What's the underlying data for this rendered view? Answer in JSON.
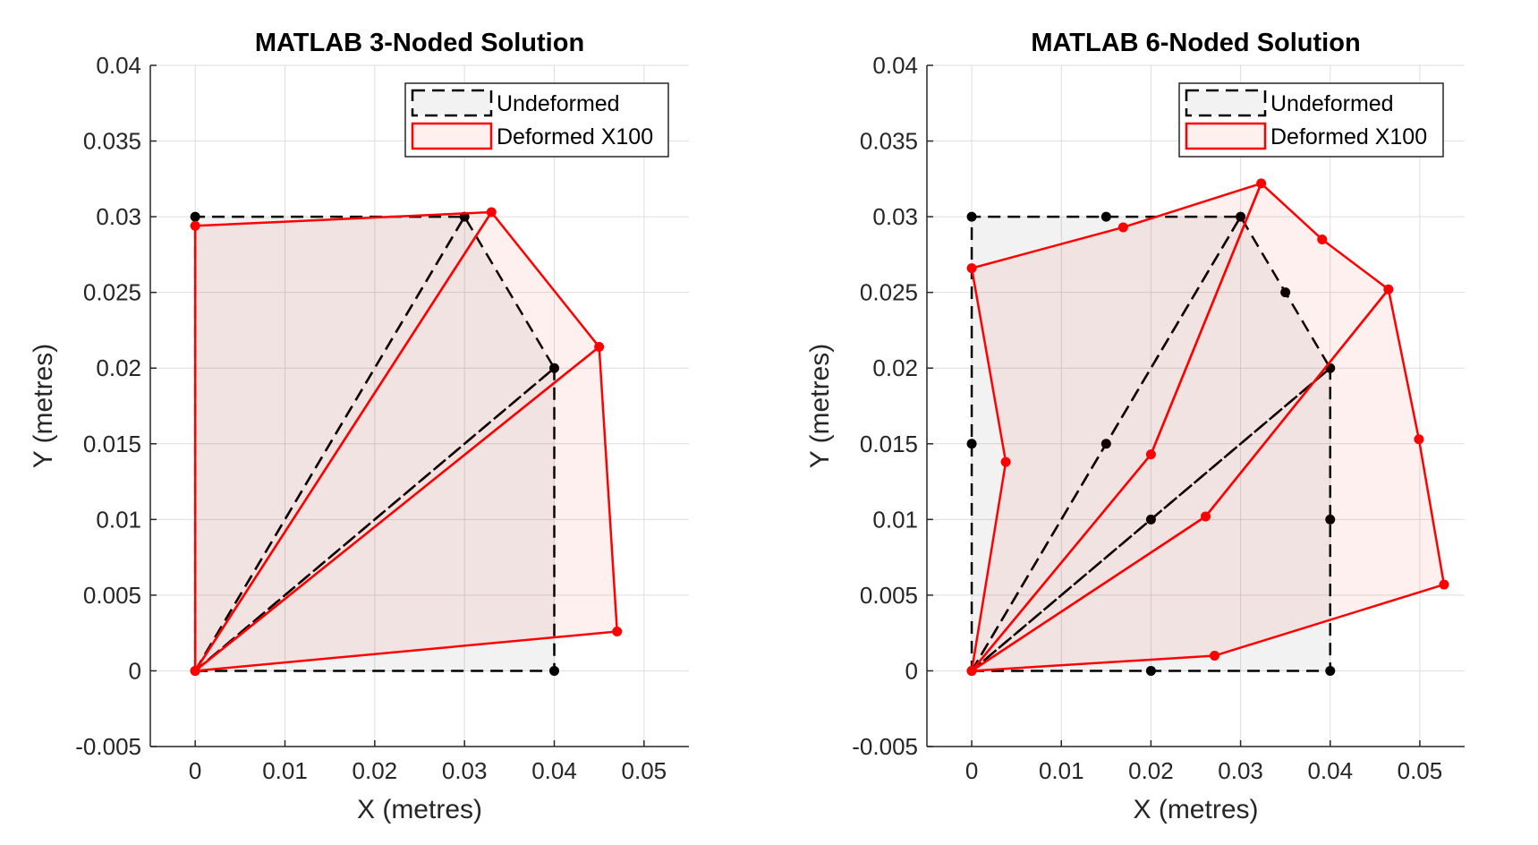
{
  "chart_data": [
    {
      "type": "mesh-plot",
      "title": "MATLAB 3-Noded Solution",
      "xlabel": "X (metres)",
      "ylabel": "Y (metres)",
      "xlim": [
        -0.005,
        0.055
      ],
      "ylim": [
        -0.005,
        0.04
      ],
      "xticks": [
        0,
        0.01,
        0.02,
        0.03,
        0.04,
        0.05
      ],
      "xtick_labels": [
        "0",
        "0.01",
        "0.02",
        "0.03",
        "0.04",
        "0.05"
      ],
      "yticks": [
        -0.005,
        0,
        0.005,
        0.01,
        0.015,
        0.02,
        0.025,
        0.03,
        0.035,
        0.04
      ],
      "ytick_labels": [
        "-0.005",
        "0",
        "0.005",
        "0.01",
        "0.015",
        "0.02",
        "0.025",
        "0.03",
        "0.035",
        "0.04"
      ],
      "grid": true,
      "legend_position": "top-right",
      "legend": [
        {
          "label": "Undeformed",
          "style": "dashed",
          "color": "#000000"
        },
        {
          "label": "Deformed X100",
          "style": "solid",
          "color": "#ff0000"
        }
      ],
      "undeformed": {
        "nodes": [
          [
            0,
            0
          ],
          [
            0.04,
            0
          ],
          [
            0.04,
            0.02
          ],
          [
            0.03,
            0.03
          ],
          [
            0,
            0.03
          ]
        ],
        "elements": [
          [
            0,
            1,
            2
          ],
          [
            0,
            2,
            3
          ],
          [
            0,
            3,
            4
          ]
        ]
      },
      "deformed": {
        "nodes": [
          [
            0,
            0
          ],
          [
            0.047,
            0.0026
          ],
          [
            0.045,
            0.0214
          ],
          [
            0.033,
            0.0303
          ],
          [
            0,
            0.0294
          ]
        ],
        "elements": [
          [
            0,
            1,
            2
          ],
          [
            0,
            2,
            3
          ],
          [
            0,
            3,
            4
          ]
        ]
      }
    },
    {
      "type": "mesh-plot",
      "title": "MATLAB 6-Noded Solution",
      "xlabel": "X (metres)",
      "ylabel": "Y (metres)",
      "xlim": [
        -0.005,
        0.055
      ],
      "ylim": [
        -0.005,
        0.04
      ],
      "xticks": [
        0,
        0.01,
        0.02,
        0.03,
        0.04,
        0.05
      ],
      "xtick_labels": [
        "0",
        "0.01",
        "0.02",
        "0.03",
        "0.04",
        "0.05"
      ],
      "yticks": [
        -0.005,
        0,
        0.005,
        0.01,
        0.015,
        0.02,
        0.025,
        0.03,
        0.035,
        0.04
      ],
      "ytick_labels": [
        "-0.005",
        "0",
        "0.005",
        "0.01",
        "0.015",
        "0.02",
        "0.025",
        "0.03",
        "0.035",
        "0.04"
      ],
      "grid": true,
      "legend_position": "top-right",
      "legend": [
        {
          "label": "Undeformed",
          "style": "dashed",
          "color": "#000000"
        },
        {
          "label": "Deformed X100",
          "style": "solid",
          "color": "#ff0000"
        }
      ],
      "undeformed": {
        "nodes": [
          [
            0,
            0
          ],
          [
            0.04,
            0
          ],
          [
            0.04,
            0.02
          ],
          [
            0.03,
            0.03
          ],
          [
            0,
            0.03
          ],
          [
            0.02,
            0
          ],
          [
            0.04,
            0.01
          ],
          [
            0.02,
            0.01
          ],
          [
            0.035,
            0.025
          ],
          [
            0.015,
            0.015
          ],
          [
            0.015,
            0.03
          ],
          [
            0,
            0.015
          ]
        ],
        "elements": [
          [
            0,
            5,
            1,
            6,
            2,
            7
          ],
          [
            0,
            7,
            2,
            8,
            3,
            9
          ],
          [
            0,
            9,
            3,
            10,
            4,
            11
          ]
        ]
      },
      "deformed": {
        "nodes": [
          [
            0,
            0
          ],
          [
            0.0527,
            0.0057
          ],
          [
            0.0465,
            0.0252
          ],
          [
            0.0323,
            0.0322
          ],
          [
            0,
            0.0266
          ],
          [
            0.0271,
            0.001
          ],
          [
            0.0499,
            0.0153
          ],
          [
            0.0261,
            0.0102
          ],
          [
            0.0391,
            0.0285
          ],
          [
            0.02,
            0.0143
          ],
          [
            0.0169,
            0.0293
          ],
          [
            0.0038,
            0.0138
          ]
        ],
        "elements": [
          [
            0,
            5,
            1,
            6,
            2,
            7
          ],
          [
            0,
            7,
            2,
            8,
            3,
            9
          ],
          [
            0,
            9,
            3,
            10,
            4,
            11
          ]
        ]
      }
    }
  ]
}
